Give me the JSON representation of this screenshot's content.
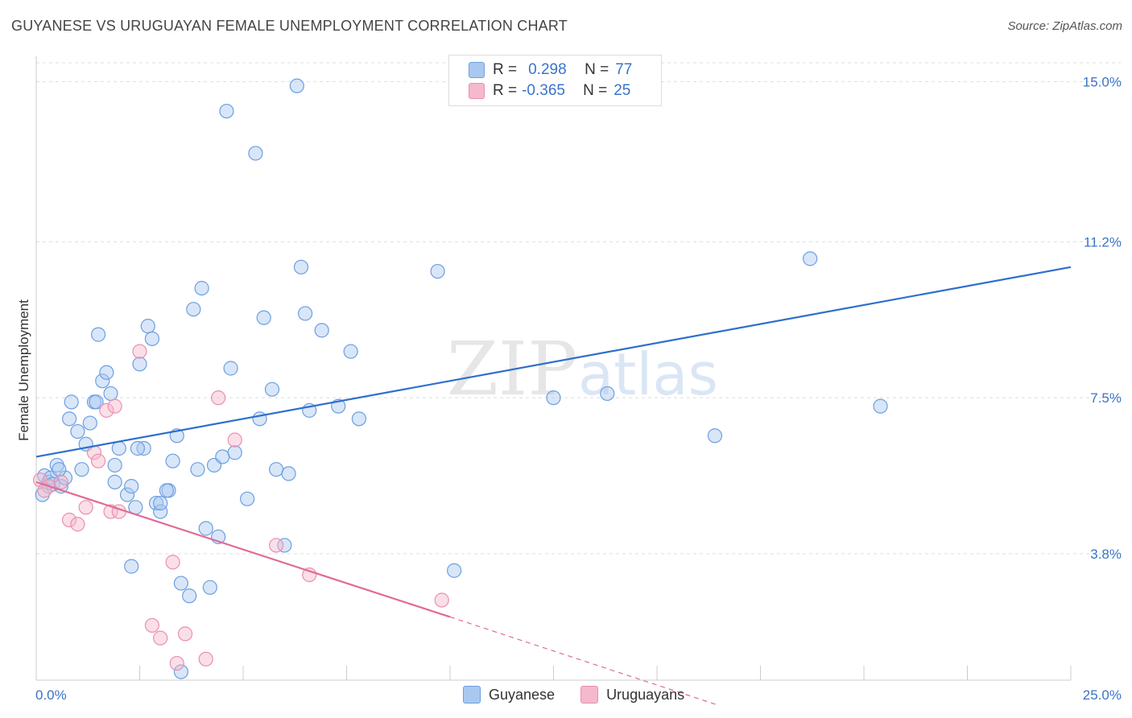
{
  "header": {
    "title": "GUYANESE VS URUGUAYAN FEMALE UNEMPLOYMENT CORRELATION CHART",
    "source": "Source: ZipAtlas.com"
  },
  "watermark": {
    "part1": "ZIP",
    "part2": "atlas"
  },
  "legend_top": {
    "rows": [
      {
        "r_label": "R =",
        "r_value": "0.298",
        "n_label": "N =",
        "n_value": "77",
        "color": "#a9c8f0"
      },
      {
        "r_label": "R =",
        "r_value": "-0.365",
        "n_label": "N =",
        "n_value": "25",
        "color": "#f5b8cc"
      }
    ]
  },
  "legend_bottom": {
    "items": [
      {
        "label": "Guyanese",
        "color": "#a9c8f0"
      },
      {
        "label": "Uruguayans",
        "color": "#f5b8cc"
      }
    ]
  },
  "chart_data": {
    "type": "scatter",
    "title": "GUYANESE VS URUGUAYAN FEMALE UNEMPLOYMENT CORRELATION CHART",
    "xlabel": "",
    "ylabel": "Female Unemployment",
    "xlim": [
      0,
      25
    ],
    "ylim": [
      0.8,
      15.6
    ],
    "x_tick_labels": [
      "0.0%",
      "25.0%"
    ],
    "y_ticks": [
      3.8,
      7.5,
      11.2,
      15.0
    ],
    "y_tick_labels": [
      "3.8%",
      "7.5%",
      "11.2%",
      "15.0%"
    ],
    "grid": true,
    "legend_position": "top-center",
    "series": [
      {
        "name": "Guyanese",
        "color": "#6d9fe0",
        "fill": "#a9c8f0",
        "trend": {
          "x": [
            0,
            25
          ],
          "y": [
            6.1,
            10.6
          ]
        },
        "points": [
          [
            0.15,
            5.2
          ],
          [
            0.2,
            5.65
          ],
          [
            0.3,
            5.5
          ],
          [
            0.35,
            5.6
          ],
          [
            0.4,
            5.45
          ],
          [
            0.5,
            5.9
          ],
          [
            0.6,
            5.4
          ],
          [
            0.7,
            5.6
          ],
          [
            0.8,
            7.0
          ],
          [
            0.85,
            7.4
          ],
          [
            1.0,
            6.7
          ],
          [
            1.1,
            5.8
          ],
          [
            1.2,
            6.4
          ],
          [
            1.3,
            6.9
          ],
          [
            1.4,
            7.4
          ],
          [
            1.5,
            9.0
          ],
          [
            1.6,
            7.9
          ],
          [
            1.7,
            8.1
          ],
          [
            1.9,
            5.5
          ],
          [
            1.9,
            5.9
          ],
          [
            2.0,
            6.3
          ],
          [
            2.2,
            5.2
          ],
          [
            2.3,
            5.4
          ],
          [
            2.4,
            4.9
          ],
          [
            2.5,
            8.3
          ],
          [
            2.6,
            6.3
          ],
          [
            2.7,
            9.2
          ],
          [
            2.8,
            8.9
          ],
          [
            2.9,
            5.0
          ],
          [
            3.0,
            4.8
          ],
          [
            3.2,
            5.3
          ],
          [
            3.3,
            6.0
          ],
          [
            3.4,
            6.6
          ],
          [
            3.5,
            3.1
          ],
          [
            3.7,
            2.8
          ],
          [
            3.8,
            9.6
          ],
          [
            3.9,
            5.8
          ],
          [
            4.0,
            10.1
          ],
          [
            4.1,
            4.4
          ],
          [
            4.2,
            3.0
          ],
          [
            4.3,
            5.9
          ],
          [
            4.4,
            4.2
          ],
          [
            4.5,
            6.1
          ],
          [
            4.6,
            14.3
          ],
          [
            4.7,
            8.2
          ],
          [
            4.8,
            6.2
          ],
          [
            5.1,
            5.1
          ],
          [
            5.3,
            13.3
          ],
          [
            5.4,
            7.0
          ],
          [
            5.5,
            9.4
          ],
          [
            5.7,
            7.7
          ],
          [
            5.8,
            5.8
          ],
          [
            6.0,
            4.0
          ],
          [
            6.1,
            5.7
          ],
          [
            6.3,
            14.9
          ],
          [
            6.4,
            10.6
          ],
          [
            6.5,
            9.5
          ],
          [
            6.6,
            7.2
          ],
          [
            6.9,
            9.1
          ],
          [
            7.3,
            7.3
          ],
          [
            7.6,
            8.6
          ],
          [
            7.8,
            7.0
          ],
          [
            9.7,
            10.5
          ],
          [
            10.1,
            3.4
          ],
          [
            12.5,
            7.5
          ],
          [
            13.8,
            7.6
          ],
          [
            16.4,
            6.6
          ],
          [
            18.7,
            10.8
          ],
          [
            20.4,
            7.3
          ],
          [
            2.3,
            3.5
          ],
          [
            3.0,
            5.0
          ],
          [
            1.8,
            7.6
          ],
          [
            3.5,
            1.0
          ],
          [
            0.55,
            5.8
          ],
          [
            1.45,
            7.4
          ],
          [
            2.45,
            6.3
          ],
          [
            3.15,
            5.3
          ]
        ]
      },
      {
        "name": "Uruguayans",
        "color": "#ea8fae",
        "fill": "#f5b8cc",
        "trend": {
          "x": [
            0,
            10.0
          ],
          "y": [
            5.5,
            2.3
          ]
        },
        "trend_ext": {
          "x": [
            10.0,
            16.5
          ],
          "y": [
            2.3,
            0.2
          ]
        },
        "points": [
          [
            0.1,
            5.55
          ],
          [
            0.3,
            5.4
          ],
          [
            0.6,
            5.5
          ],
          [
            0.8,
            4.6
          ],
          [
            1.0,
            4.5
          ],
          [
            1.2,
            4.9
          ],
          [
            1.4,
            6.2
          ],
          [
            1.5,
            6.0
          ],
          [
            1.7,
            7.2
          ],
          [
            1.9,
            7.3
          ],
          [
            1.8,
            4.8
          ],
          [
            2.0,
            4.8
          ],
          [
            2.5,
            8.6
          ],
          [
            2.8,
            2.1
          ],
          [
            3.0,
            1.8
          ],
          [
            3.3,
            3.6
          ],
          [
            3.4,
            1.2
          ],
          [
            3.6,
            1.9
          ],
          [
            4.1,
            1.3
          ],
          [
            4.4,
            7.5
          ],
          [
            4.8,
            6.5
          ],
          [
            5.8,
            4.0
          ],
          [
            6.6,
            3.3
          ],
          [
            9.8,
            2.7
          ],
          [
            0.2,
            5.3
          ]
        ]
      }
    ]
  }
}
